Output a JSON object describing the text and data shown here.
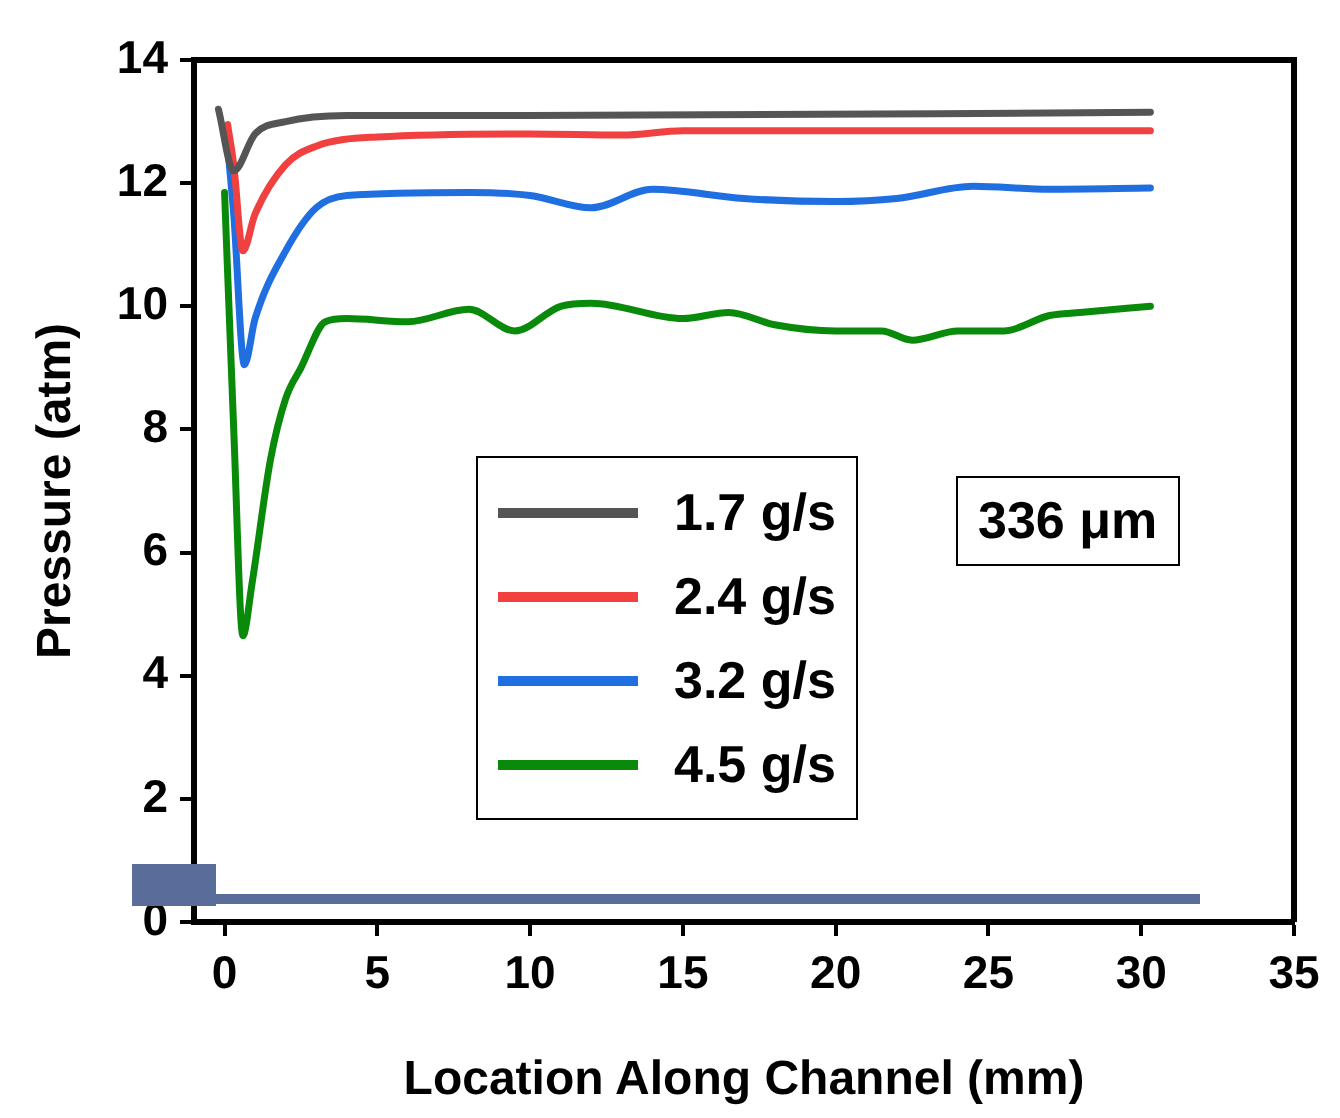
{
  "chart_data": {
    "type": "line",
    "xlabel": "Location Along Channel (mm)",
    "ylabel": "Pressure (atm)",
    "xlim": [
      -1,
      35
    ],
    "xticks": [
      0,
      5,
      10,
      15,
      20,
      25,
      30,
      35
    ],
    "ylim": [
      0,
      14
    ],
    "yticks": [
      0,
      2,
      4,
      6,
      8,
      10,
      12,
      14
    ],
    "grid": false,
    "legend": "center",
    "marker": "none",
    "line_style": "solid",
    "annotations": [
      "336 μm"
    ],
    "series": [
      {
        "name": "1.7 g/s",
        "color": "#555555",
        "x": [
          -0.2,
          0.3,
          1,
          2,
          4,
          10,
          30.3
        ],
        "values": [
          13.2,
          12.2,
          12.8,
          13.0,
          13.1,
          13.1,
          13.15
        ]
      },
      {
        "name": "2.4 g/s",
        "color": "#f04040",
        "x": [
          0.1,
          0.3,
          0.6,
          1,
          2,
          3,
          5,
          10,
          13,
          15,
          30.3
        ],
        "values": [
          12.95,
          12.3,
          10.9,
          11.5,
          12.3,
          12.6,
          12.75,
          12.8,
          12.78,
          12.85,
          12.85
        ]
      },
      {
        "name": "3.2 g/s",
        "color": "#1f6fe0",
        "x": [
          0.1,
          0.3,
          0.65,
          1,
          2,
          3,
          4,
          8,
          10,
          12,
          14,
          17,
          20,
          22,
          24.5,
          27,
          30.3
        ],
        "values": [
          12.6,
          11.5,
          9.05,
          9.8,
          10.9,
          11.6,
          11.8,
          11.85,
          11.8,
          11.6,
          11.9,
          11.75,
          11.7,
          11.75,
          11.95,
          11.9,
          11.92
        ]
      },
      {
        "name": "4.5 g/s",
        "color": "#0a8a0a",
        "x": [
          0,
          0.3,
          0.6,
          0.9,
          1.5,
          2,
          2.5,
          3.3,
          4,
          6,
          8,
          9.5,
          11,
          12,
          15,
          16.5,
          18,
          20,
          21.5,
          22.5,
          24,
          25.5,
          27,
          28,
          30.3
        ],
        "values": [
          11.85,
          8,
          4.65,
          5.5,
          7.5,
          8.5,
          9.0,
          9.75,
          9.8,
          9.75,
          9.95,
          9.6,
          10.0,
          10.05,
          9.8,
          9.9,
          9.7,
          9.6,
          9.6,
          9.45,
          9.6,
          9.6,
          9.85,
          9.9,
          10.0
        ]
      }
    ]
  }
}
